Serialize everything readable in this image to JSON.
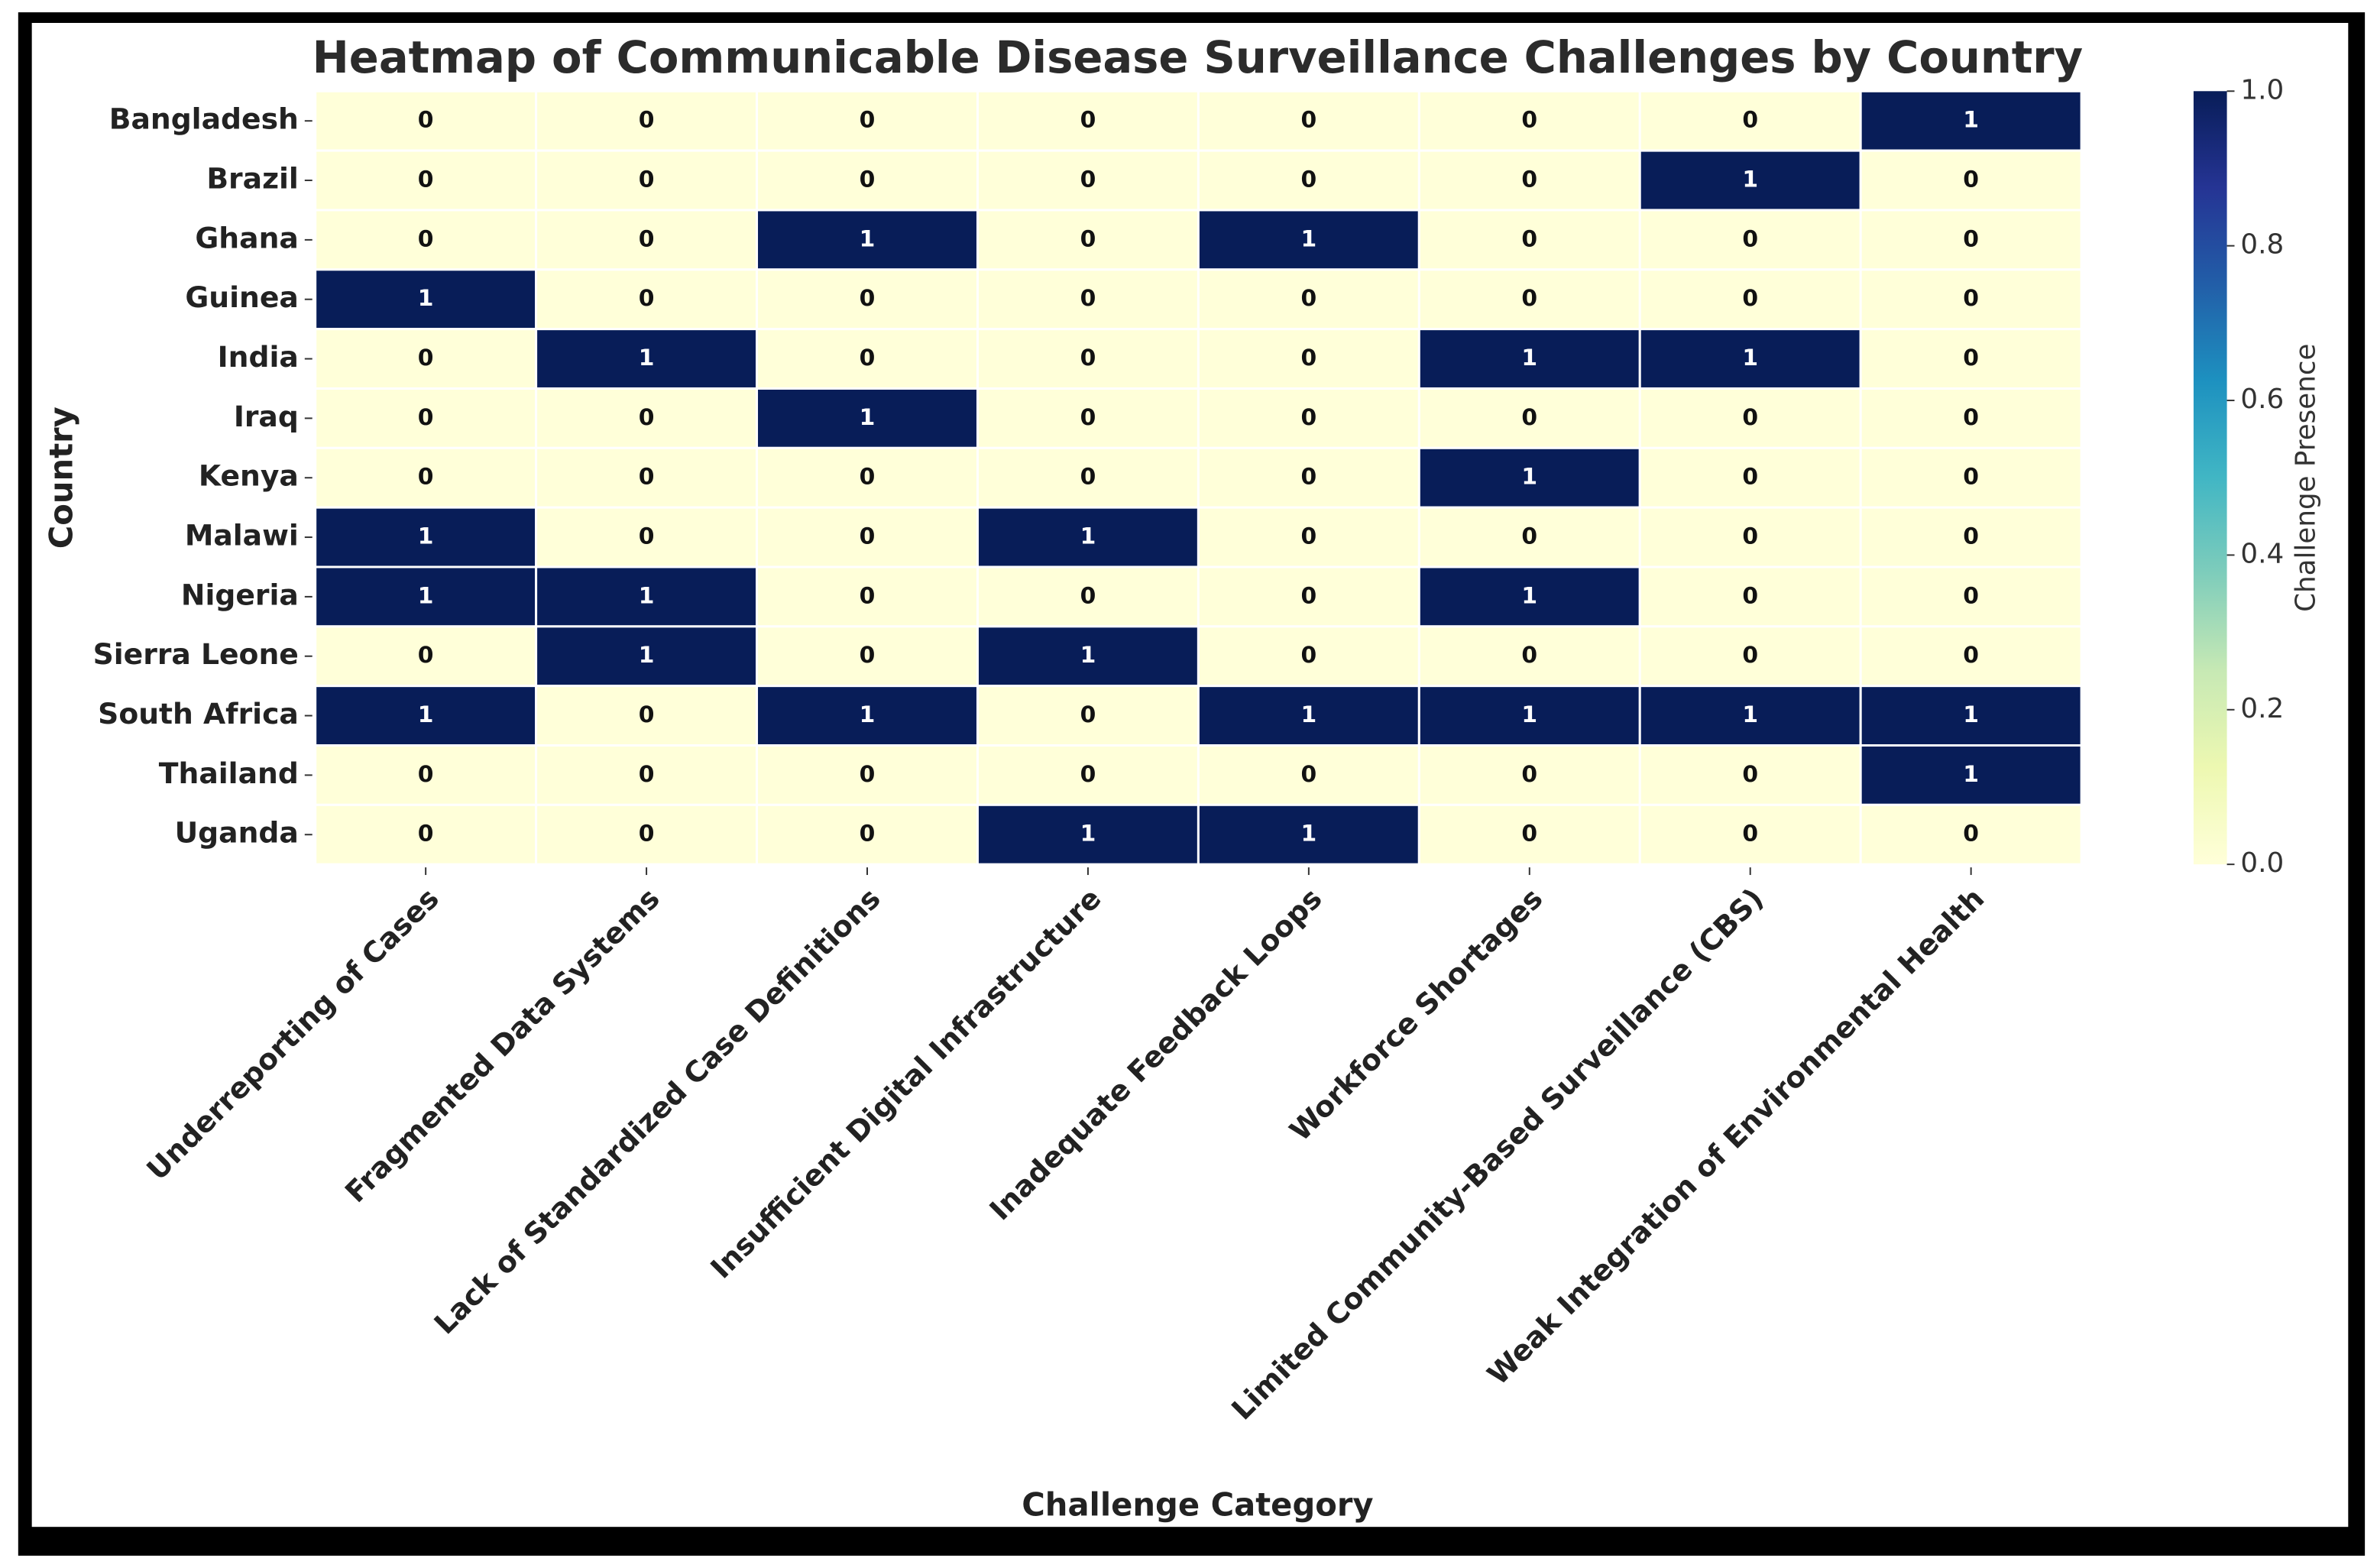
{
  "chart_data": {
    "type": "heatmap",
    "title": "Heatmap of Communicable Disease Surveillance Challenges by Country",
    "x_label": "Challenge Category",
    "y_label": "Country",
    "colorbar_label": "Challenge Presence",
    "categories": [
      "Underreporting of Cases",
      "Fragmented Data Systems",
      "Lack of Standardized Case Definitions",
      "Insufficient Digital Infrastructure",
      "Inadequate Feedback Loops",
      "Workforce Shortages",
      "Limited Community-Based Surveillance (CBS)",
      "Weak Integration of Environmental Health"
    ],
    "rows": [
      "Bangladesh",
      "Brazil",
      "Ghana",
      "Guinea",
      "India",
      "Iraq",
      "Kenya",
      "Malawi",
      "Nigeria",
      "Sierra Leone",
      "South Africa",
      "Thailand",
      "Uganda"
    ],
    "values": [
      [
        0,
        0,
        0,
        0,
        0,
        0,
        0,
        1
      ],
      [
        0,
        0,
        0,
        0,
        0,
        0,
        1,
        0
      ],
      [
        0,
        0,
        1,
        0,
        1,
        0,
        0,
        0
      ],
      [
        1,
        0,
        0,
        0,
        0,
        0,
        0,
        0
      ],
      [
        0,
        1,
        0,
        0,
        0,
        1,
        1,
        0
      ],
      [
        0,
        0,
        1,
        0,
        0,
        0,
        0,
        0
      ],
      [
        0,
        0,
        0,
        0,
        0,
        1,
        0,
        0
      ],
      [
        1,
        0,
        0,
        1,
        0,
        0,
        0,
        0
      ],
      [
        1,
        1,
        0,
        0,
        0,
        1,
        0,
        0
      ],
      [
        0,
        1,
        0,
        1,
        0,
        0,
        0,
        0
      ],
      [
        1,
        0,
        1,
        0,
        1,
        1,
        1,
        1
      ],
      [
        0,
        0,
        0,
        0,
        0,
        0,
        0,
        1
      ],
      [
        0,
        0,
        0,
        1,
        1,
        0,
        0,
        0
      ]
    ],
    "clim": [
      0,
      1
    ],
    "cticks": [
      {
        "value": 0,
        "label": "0.0"
      },
      0.2,
      0.4,
      0.6,
      0.8,
      {
        "value": 1,
        "label": "1.0"
      }
    ],
    "colorscale": [
      "#ffffd9",
      "#edf8b1",
      "#c7e9b4",
      "#7fcdbb",
      "#41b6c4",
      "#1d91c0",
      "#225ea8",
      "#253494",
      "#081d58"
    ]
  }
}
